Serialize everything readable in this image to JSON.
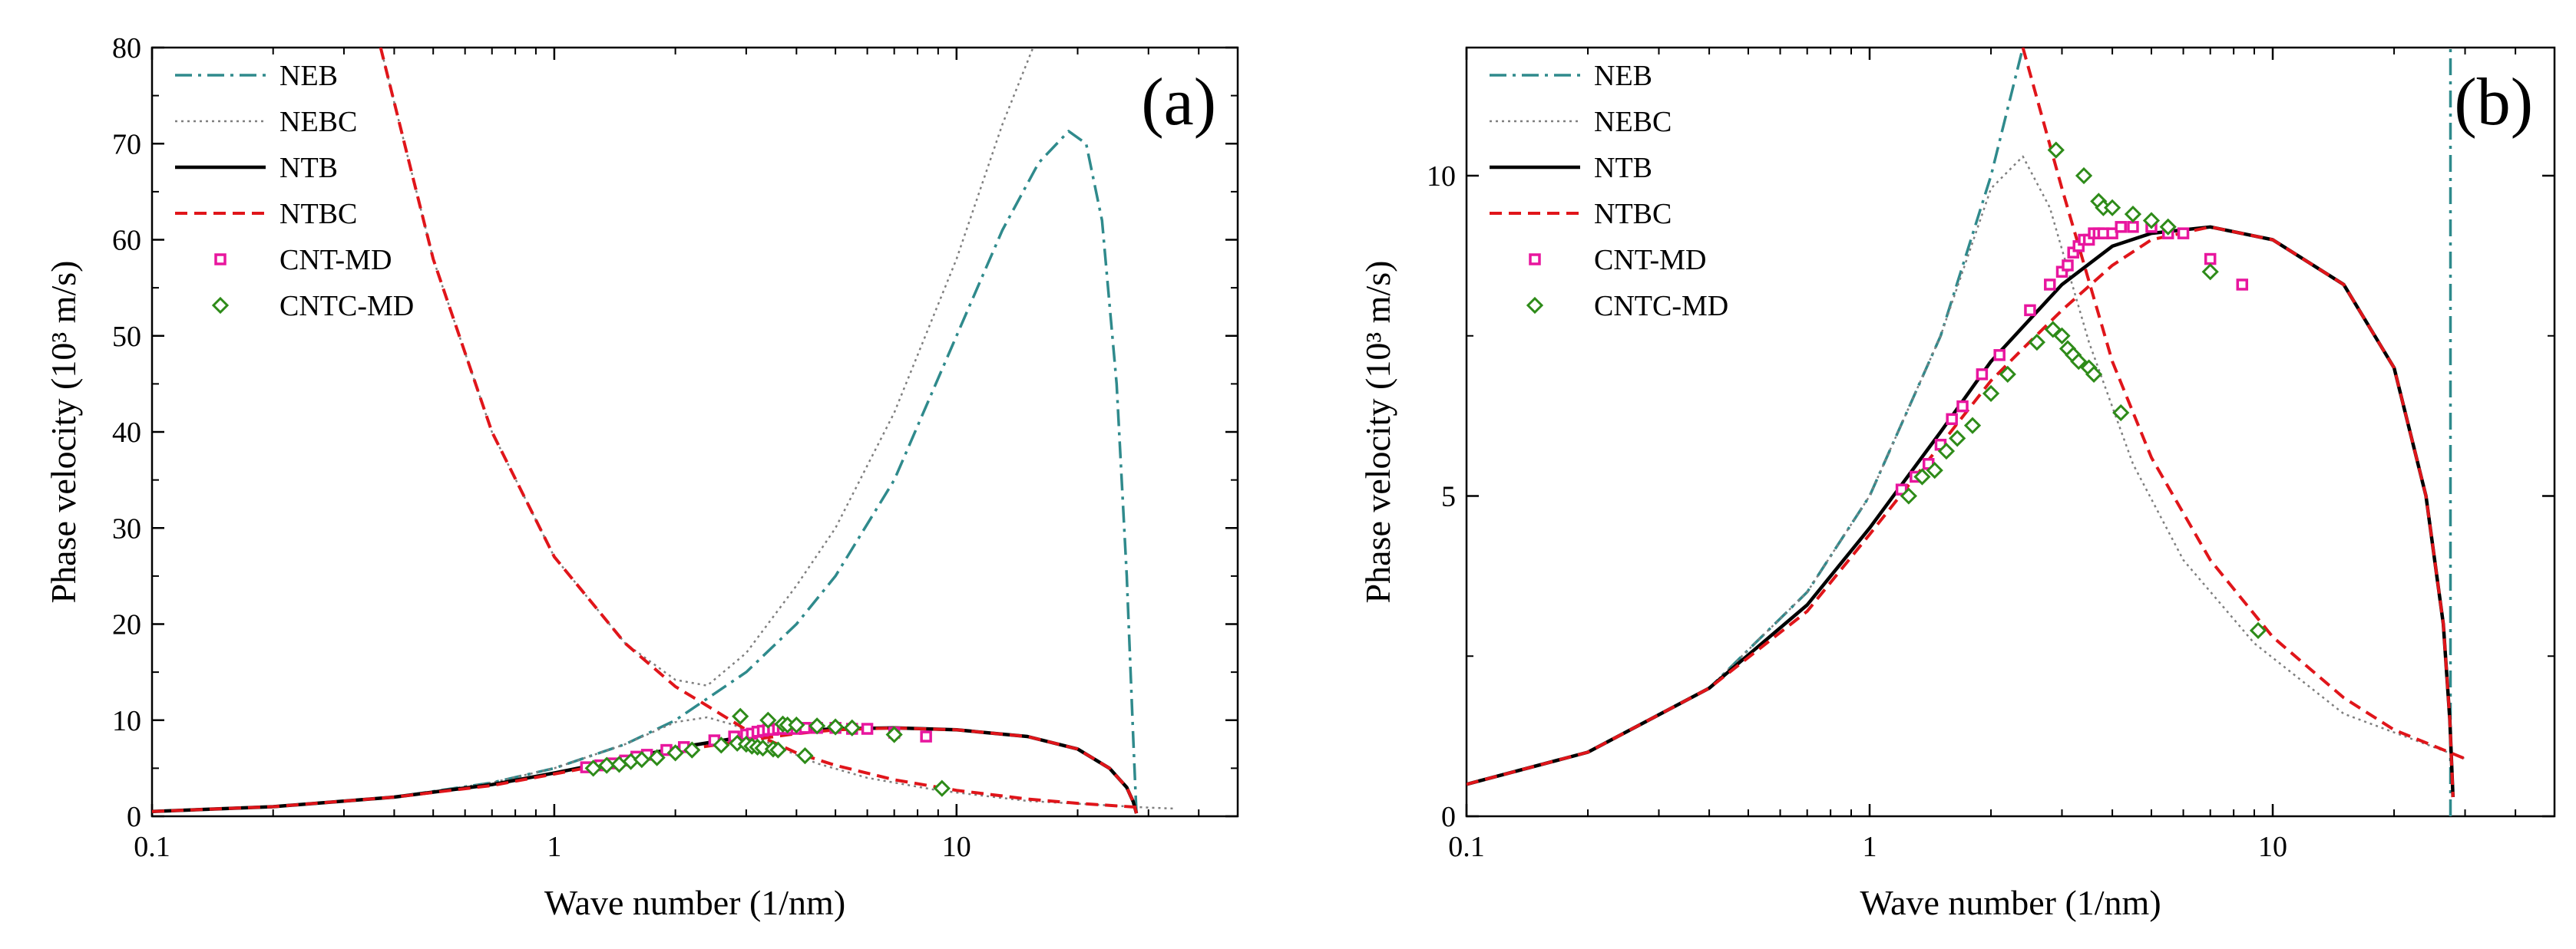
{
  "colors": {
    "NEB": "#2f8a8c",
    "NEBC": "#7f7f7f",
    "NTB": "#000000",
    "NTBC": "#e0151a",
    "CNT-MD": "#e8169e",
    "CNTC-MD": "#2e8b19"
  },
  "chart_data": [
    {
      "type": "line",
      "panel_label": "(a)",
      "xlabel": "Wave number (1/nm)",
      "ylabel": "Phase velocity (10³ m/s)",
      "xscale": "log",
      "xlim": [
        0.1,
        50
      ],
      "ylim": [
        0,
        80
      ],
      "xticks": [
        0.1,
        1,
        10
      ],
      "xtick_labels": [
        "0.1",
        "1",
        "10"
      ],
      "yticks": [
        0,
        10,
        20,
        30,
        40,
        50,
        60,
        70,
        80
      ],
      "ytick_labels": [
        "0",
        "10",
        "20",
        "30",
        "40",
        "50",
        "60",
        "70",
        "80"
      ],
      "legend_position": "top-left",
      "legend": [
        "NEB",
        "NEBC",
        "NTB",
        "NTBC",
        "CNT-MD",
        "CNTC-MD"
      ],
      "series": [
        {
          "name": "NEB",
          "style": "dashdot",
          "x": [
            0.1,
            0.2,
            0.4,
            0.7,
            1.0,
            1.5,
            2.0,
            3.0,
            4.0,
            5.0,
            7.0,
            10.0,
            13.0,
            16.0,
            19.0,
            21.0,
            23.0,
            25.0,
            26.5,
            27.5,
            28.0
          ],
          "y": [
            0.5,
            1.0,
            2.0,
            3.5,
            5.0,
            7.5,
            10.0,
            15.0,
            20.0,
            25.0,
            35.0,
            50.0,
            61.0,
            68.0,
            71.3,
            70.0,
            62.0,
            45.0,
            25.0,
            8.0,
            0.3
          ]
        },
        {
          "name": "NEBC",
          "style": "dotted",
          "x": [
            0.1,
            0.2,
            0.4,
            0.7,
            1.0,
            1.5,
            2.0,
            2.4,
            2.8,
            3.5,
            4.5,
            6.0,
            9.0,
            15.0,
            30.0,
            35.0
          ],
          "y": [
            0.5,
            1.0,
            2.0,
            3.5,
            5.0,
            7.5,
            9.8,
            10.3,
            9.5,
            7.4,
            5.5,
            4.0,
            2.7,
            1.6,
            0.9,
            0.8
          ]
        },
        {
          "name": "NEBC",
          "style": "dotted",
          "x": [
            0.37,
            0.5,
            0.7,
            1.0,
            1.5,
            2.0,
            2.4,
            3.0,
            4.0,
            5.0,
            7.0,
            10.0,
            13.0,
            15.5
          ],
          "y": [
            80.0,
            58.0,
            40.0,
            27.0,
            18.0,
            14.2,
            13.6,
            17.0,
            24.0,
            30.0,
            42.0,
            58.0,
            72.0,
            80.0
          ]
        },
        {
          "name": "NTB",
          "style": "solid",
          "x": [
            0.1,
            0.2,
            0.4,
            0.7,
            1.0,
            1.5,
            2.0,
            3.0,
            4.0,
            5.0,
            7.0,
            10.0,
            15.0,
            20.0,
            24.0,
            26.5,
            27.5,
            28.0
          ],
          "y": [
            0.5,
            1.0,
            2.0,
            3.3,
            4.5,
            6.0,
            7.1,
            8.3,
            8.9,
            9.1,
            9.2,
            9.0,
            8.3,
            7.0,
            5.0,
            3.0,
            1.5,
            0.3
          ]
        },
        {
          "name": "NTBC",
          "style": "dashed",
          "x": [
            0.1,
            0.2,
            0.4,
            0.7,
            1.0,
            1.5,
            2.0,
            2.4,
            3.0,
            4.0,
            5.0,
            7.0,
            10.0,
            15.0,
            20.0,
            24.0,
            26.5,
            27.5,
            28.0
          ],
          "y": [
            0.5,
            1.0,
            2.0,
            3.2,
            4.4,
            5.8,
            6.8,
            7.3,
            7.9,
            8.6,
            9.0,
            9.2,
            9.0,
            8.3,
            7.0,
            5.0,
            3.0,
            1.5,
            0.3
          ]
        },
        {
          "name": "NTBC",
          "style": "dashed",
          "x": [
            0.37,
            0.5,
            0.7,
            1.0,
            1.5,
            2.0,
            2.4,
            3.0,
            4.0,
            5.0,
            7.0,
            10.0,
            15.0,
            20.0,
            28.0
          ],
          "y": [
            80.0,
            58.0,
            40.0,
            27.0,
            18.0,
            13.5,
            11.5,
            9.0,
            6.6,
            5.3,
            3.8,
            2.7,
            1.8,
            1.35,
            0.95
          ]
        }
      ],
      "scatter": [
        {
          "name": "CNT-MD",
          "marker": "square-open",
          "x": [
            1.2,
            1.3,
            1.4,
            1.5,
            1.6,
            1.7,
            1.9,
            2.1,
            2.5,
            2.8,
            3.0,
            3.1,
            3.2,
            3.3,
            3.4,
            3.5,
            3.6,
            3.7,
            3.8,
            4.0,
            4.2,
            4.5,
            5.0,
            5.5,
            6.0,
            7.0,
            8.4
          ],
          "y": [
            5.1,
            5.3,
            5.5,
            5.8,
            6.2,
            6.4,
            6.9,
            7.2,
            7.9,
            8.3,
            8.5,
            8.6,
            8.8,
            8.9,
            9.0,
            9.0,
            9.1,
            9.1,
            9.1,
            9.1,
            9.2,
            9.2,
            9.2,
            9.1,
            9.1,
            8.7,
            8.3
          ]
        },
        {
          "name": "CNTC-MD",
          "marker": "diamond-open",
          "x": [
            1.25,
            1.35,
            1.45,
            1.55,
            1.65,
            1.8,
            2.0,
            2.2,
            2.6,
            2.85,
            2.9,
            3.0,
            3.1,
            3.2,
            3.3,
            3.4,
            3.5,
            3.6,
            3.7,
            3.8,
            4.0,
            4.2,
            4.5,
            5.0,
            5.5,
            7.0,
            9.2
          ],
          "y": [
            5.0,
            5.3,
            5.4,
            5.7,
            5.9,
            6.1,
            6.6,
            6.9,
            7.4,
            7.6,
            10.4,
            7.5,
            7.3,
            7.2,
            7.1,
            10.0,
            7.0,
            6.9,
            9.6,
            9.5,
            9.5,
            6.3,
            9.4,
            9.3,
            9.2,
            8.5,
            2.9
          ]
        }
      ]
    },
    {
      "type": "line",
      "panel_label": "(b)",
      "xlabel": "Wave number (1/nm)",
      "ylabel": "Phase velocity (10³ m/s)",
      "xscale": "log",
      "xlim": [
        0.1,
        50
      ],
      "ylim": [
        0,
        12
      ],
      "xticks": [
        0.1,
        1,
        10
      ],
      "xtick_labels": [
        "0.1",
        "1",
        "10"
      ],
      "yticks": [
        0,
        5,
        10
      ],
      "ytick_labels": [
        "0",
        "5",
        "10"
      ],
      "legend_position": "top-left",
      "legend": [
        "NEB",
        "NEBC",
        "NTB",
        "NTBC",
        "CNT-MD",
        "CNTC-MD"
      ],
      "series": [
        {
          "name": "NEB",
          "style": "dashdot",
          "x": [
            0.1,
            0.2,
            0.4,
            0.7,
            1.0,
            1.5,
            2.0,
            2.4
          ],
          "y": [
            0.5,
            1.0,
            2.0,
            3.5,
            5.0,
            7.5,
            10.0,
            12.0
          ]
        },
        {
          "name": "NEB",
          "style": "dashdot",
          "x": [
            27.6,
            27.6
          ],
          "y": [
            0.0,
            12.0
          ]
        },
        {
          "name": "NEBC",
          "style": "dotted",
          "x": [
            0.1,
            0.2,
            0.4,
            0.7,
            1.0,
            1.5,
            2.0,
            2.4,
            2.8,
            3.5,
            4.5,
            6.0,
            9.0,
            15.0,
            30.0
          ],
          "y": [
            0.5,
            1.0,
            2.0,
            3.5,
            5.0,
            7.5,
            9.8,
            10.3,
            9.5,
            7.4,
            5.5,
            4.0,
            2.7,
            1.6,
            0.9
          ]
        },
        {
          "name": "NTB",
          "style": "solid",
          "x": [
            0.1,
            0.2,
            0.4,
            0.7,
            1.0,
            1.5,
            2.0,
            3.0,
            4.0,
            5.0,
            7.0,
            10.0,
            15.0,
            20.0,
            24.0,
            26.5,
            27.5,
            28.0
          ],
          "y": [
            0.5,
            1.0,
            2.0,
            3.3,
            4.5,
            6.0,
            7.1,
            8.3,
            8.9,
            9.1,
            9.2,
            9.0,
            8.3,
            7.0,
            5.0,
            3.0,
            1.5,
            0.3
          ]
        },
        {
          "name": "NTBC",
          "style": "dashed",
          "x": [
            0.1,
            0.2,
            0.4,
            0.7,
            1.0,
            1.5,
            2.0,
            2.4,
            3.0,
            4.0,
            5.0,
            7.0,
            10.0,
            15.0,
            20.0,
            24.0,
            26.5,
            27.5,
            28.0
          ],
          "y": [
            0.5,
            1.0,
            2.0,
            3.2,
            4.4,
            5.8,
            6.8,
            7.3,
            7.9,
            8.6,
            9.0,
            9.2,
            9.0,
            8.3,
            7.0,
            5.0,
            3.0,
            1.5,
            0.3
          ]
        },
        {
          "name": "NTBC",
          "style": "dashed",
          "x": [
            2.4,
            3.0,
            4.0,
            5.0,
            7.0,
            10.0,
            15.0,
            20.0,
            30.0
          ],
          "y": [
            12.0,
            9.8,
            7.1,
            5.6,
            4.0,
            2.8,
            1.85,
            1.35,
            0.9
          ]
        }
      ],
      "scatter": [
        {
          "name": "CNT-MD",
          "marker": "square-open",
          "x": [
            1.2,
            1.3,
            1.4,
            1.5,
            1.6,
            1.7,
            1.9,
            2.1,
            2.5,
            2.8,
            3.0,
            3.1,
            3.2,
            3.3,
            3.4,
            3.5,
            3.6,
            3.7,
            3.8,
            4.0,
            4.2,
            4.5,
            5.0,
            5.5,
            6.0,
            7.0,
            8.4
          ],
          "y": [
            5.1,
            5.3,
            5.5,
            5.8,
            6.2,
            6.4,
            6.9,
            7.2,
            7.9,
            8.3,
            8.5,
            8.6,
            8.8,
            8.9,
            9.0,
            9.0,
            9.1,
            9.1,
            9.1,
            9.1,
            9.2,
            9.2,
            9.2,
            9.1,
            9.1,
            8.7,
            8.3
          ]
        },
        {
          "name": "CNTC-MD",
          "marker": "diamond-open",
          "x": [
            1.25,
            1.35,
            1.45,
            1.55,
            1.65,
            1.8,
            2.0,
            2.2,
            2.6,
            2.85,
            2.9,
            3.0,
            3.1,
            3.2,
            3.3,
            3.4,
            3.5,
            3.6,
            3.7,
            3.8,
            4.0,
            4.2,
            4.5,
            5.0,
            5.5,
            7.0,
            9.2
          ],
          "y": [
            5.0,
            5.3,
            5.4,
            5.7,
            5.9,
            6.1,
            6.6,
            6.9,
            7.4,
            7.6,
            10.4,
            7.5,
            7.3,
            7.2,
            7.1,
            10.0,
            7.0,
            6.9,
            9.6,
            9.5,
            9.5,
            6.3,
            9.4,
            9.3,
            9.2,
            8.5,
            2.9
          ]
        }
      ]
    }
  ]
}
